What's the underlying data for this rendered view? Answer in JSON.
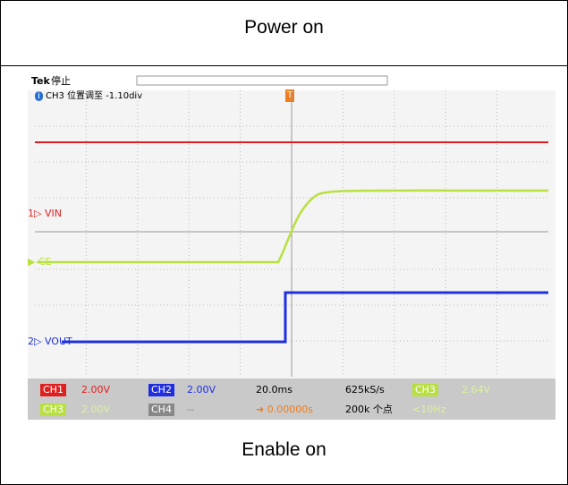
{
  "header": {
    "title": "Power on"
  },
  "footer": {
    "title": "Enable on"
  },
  "scope": {
    "brand": "Tek",
    "state": "停止",
    "info": "CH3 位置调至 -1.10div",
    "trigger_marker": "T",
    "channel_labels": [
      {
        "num": "1",
        "name": "VIN"
      },
      {
        "num": "",
        "name": "CE"
      },
      {
        "num": "2",
        "name": "VOUT"
      }
    ],
    "status": {
      "row1": [
        {
          "tag": "CH1",
          "value": "2.00V"
        },
        {
          "tag": "CH2",
          "value": "2.00V"
        }
      ],
      "row2": [
        {
          "tag": "CH3",
          "value": "2.00V"
        },
        {
          "tag": "CH4",
          "value": "--"
        }
      ],
      "timebase": "20.0ms",
      "sample_rate": "625kS/s",
      "trigger_position": "0.00000s",
      "record_length": "200k 个点",
      "trigger_source": "CH3",
      "trigger_level": "2.64V",
      "frequency": "<10Hz"
    }
  }
}
